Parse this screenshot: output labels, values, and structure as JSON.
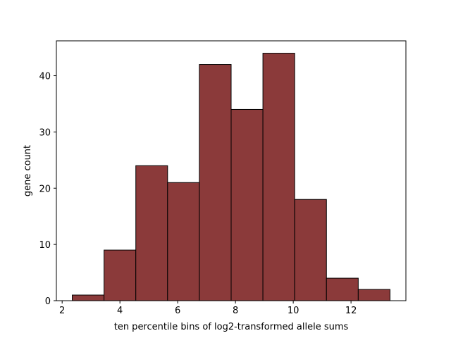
{
  "chart_data": {
    "type": "bar",
    "bins": [
      {
        "x0": 2.35,
        "x1": 3.45,
        "value": 1
      },
      {
        "x0": 3.45,
        "x1": 4.55,
        "value": 9
      },
      {
        "x0": 4.55,
        "x1": 5.65,
        "value": 24
      },
      {
        "x0": 5.65,
        "x1": 6.75,
        "value": 21
      },
      {
        "x0": 6.75,
        "x1": 7.85,
        "value": 42
      },
      {
        "x0": 7.85,
        "x1": 8.95,
        "value": 34
      },
      {
        "x0": 8.95,
        "x1": 10.05,
        "value": 44
      },
      {
        "x0": 10.05,
        "x1": 11.15,
        "value": 18
      },
      {
        "x0": 11.15,
        "x1": 12.25,
        "value": 4
      },
      {
        "x0": 12.25,
        "x1": 13.35,
        "value": 2
      }
    ],
    "xlabel": "ten percentile bins of log2-transformed allele sums",
    "ylabel": "gene count",
    "xlim": [
      1.8,
      13.9
    ],
    "ylim": [
      0,
      46.2
    ],
    "xticks": [
      2,
      4,
      6,
      8,
      10,
      12
    ],
    "yticks": [
      0,
      10,
      20,
      30,
      40
    ],
    "grid": false,
    "colors": {
      "bar_fill": "#8b3a3a",
      "bar_edge": "#000000"
    }
  }
}
